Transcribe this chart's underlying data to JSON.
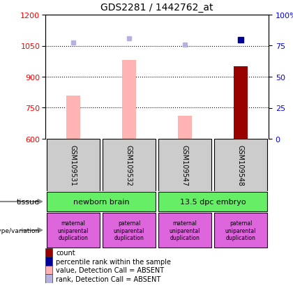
{
  "title": "GDS2281 / 1442762_at",
  "samples": [
    "GSM109531",
    "GSM109532",
    "GSM109547",
    "GSM109548"
  ],
  "ylim_left": [
    600,
    1200
  ],
  "ylim_right": [
    0,
    100
  ],
  "yticks_left": [
    600,
    750,
    900,
    1050,
    1200
  ],
  "yticks_right": [
    0,
    25,
    50,
    75,
    100
  ],
  "bar_values_absent": [
    810,
    980,
    710,
    null
  ],
  "bar_values_present": [
    null,
    null,
    null,
    950
  ],
  "rank_absent": [
    1065,
    1085,
    1055,
    null
  ],
  "rank_present": [
    null,
    null,
    null,
    1080
  ],
  "color_bar_absent": "#ffb3b3",
  "color_bar_present": "#990000",
  "color_rank_absent": "#b3b3dd",
  "color_rank_present": "#000099",
  "tissue_color": "#66ee66",
  "genotype_color": "#dd66dd",
  "gsm_bg_color": "#cccccc",
  "dotted_yticks": [
    750,
    900,
    1050
  ],
  "bar_bottom": 600,
  "bar_width": 0.25,
  "tissue_labels": [
    "newborn brain",
    "13.5 dpc embryo"
  ],
  "genotype_labels": [
    "maternal\nuniparental\nduplication",
    "paternal\nuniparental\nduplication",
    "maternal\nuniparental\nduplication",
    "paternal\nuniparental\nduplication"
  ],
  "legend_items": [
    {
      "color": "#990000",
      "label": "count"
    },
    {
      "color": "#000099",
      "label": "percentile rank within the sample"
    },
    {
      "color": "#ffb3b3",
      "label": "value, Detection Call = ABSENT"
    },
    {
      "color": "#b3b3dd",
      "label": "rank, Detection Call = ABSENT"
    }
  ]
}
